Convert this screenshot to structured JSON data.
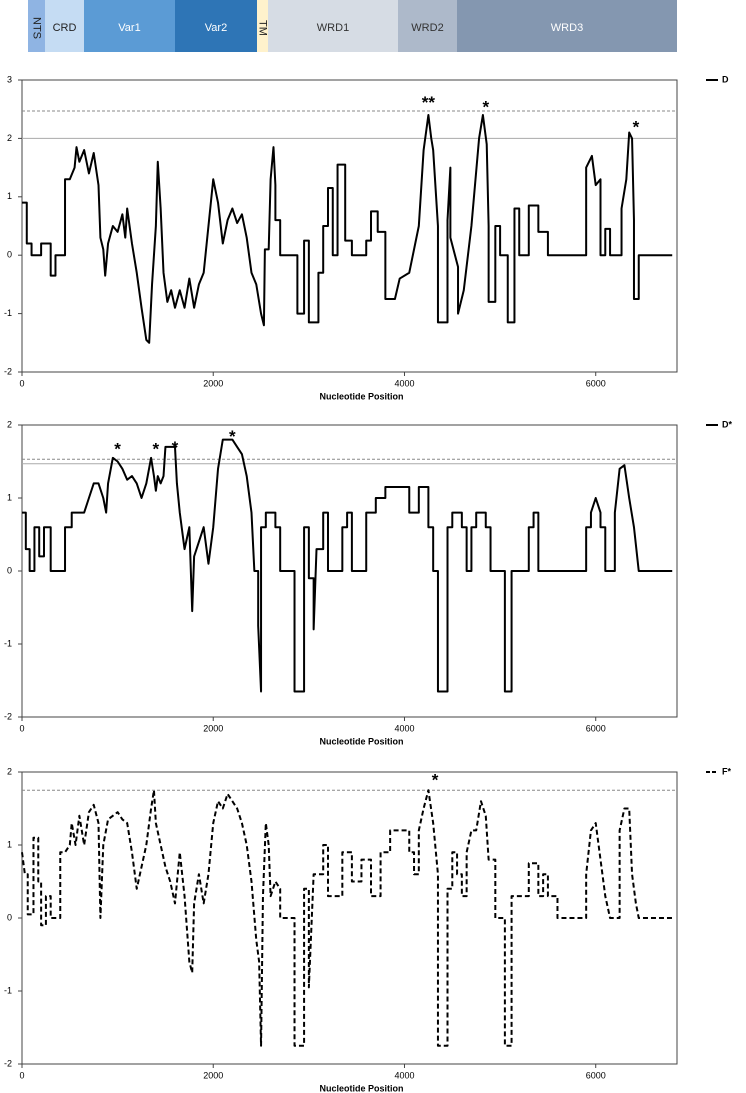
{
  "domain_map": {
    "domains": [
      "NTS",
      "CRD",
      "Var1",
      "Var2",
      "TM",
      "WRD1",
      "WRD2",
      "WRD3"
    ]
  },
  "chart_data": [
    {
      "type": "line",
      "x_label": "Nucleotide Position",
      "xlim": [
        0,
        6850
      ],
      "xticks": [
        0,
        2000,
        4000,
        6000
      ],
      "ylim": [
        -2,
        3
      ],
      "yticks": [
        -2,
        -1,
        0,
        1,
        2,
        3
      ],
      "reference_lines": [
        {
          "value": 2.47,
          "style": "dashed"
        },
        {
          "value": 2.0,
          "style": "solid"
        }
      ],
      "annotations": [
        "**",
        "*",
        "*"
      ],
      "x": [
        0,
        50,
        50,
        100,
        100,
        200,
        200,
        300,
        300,
        350,
        350,
        450,
        450,
        500,
        550,
        570,
        600,
        650,
        700,
        750,
        800,
        820,
        850,
        870,
        900,
        950,
        1000,
        1050,
        1080,
        1100,
        1150,
        1200,
        1250,
        1300,
        1330,
        1360,
        1400,
        1420,
        1450,
        1480,
        1520,
        1560,
        1600,
        1650,
        1700,
        1750,
        1800,
        1850,
        1900,
        1950,
        2000,
        2050,
        2100,
        2150,
        2200,
        2250,
        2300,
        2350,
        2400,
        2450,
        2500,
        2530,
        2540,
        2580,
        2600,
        2630,
        2650,
        2650,
        2700,
        2700,
        2880,
        2880,
        2950,
        2950,
        3000,
        3000,
        3100,
        3100,
        3150,
        3150,
        3200,
        3200,
        3250,
        3250,
        3300,
        3300,
        3380,
        3380,
        3450,
        3450,
        3600,
        3600,
        3650,
        3650,
        3720,
        3720,
        3800,
        3800,
        3900,
        3950,
        4050,
        4150,
        4200,
        4250,
        4280,
        4300,
        4350,
        4350,
        4450,
        4450,
        4480,
        4480,
        4560,
        4560,
        4620,
        4700,
        4780,
        4820,
        4860,
        4880,
        4880,
        4950,
        4950,
        5000,
        5000,
        5080,
        5080,
        5150,
        5150,
        5200,
        5200,
        5300,
        5300,
        5400,
        5400,
        5500,
        5500,
        5900,
        5900,
        5960,
        6000,
        6050,
        6050,
        6100,
        6100,
        6150,
        6150,
        6270,
        6270,
        6320,
        6350,
        6380,
        6400,
        6400,
        6450,
        6450,
        6800
      ],
      "series": [
        {
          "name": "D",
          "color": "#000000",
          "line_style": "solid",
          "values": [
            0.9,
            0.9,
            0.2,
            0.2,
            0,
            0,
            0.2,
            0.2,
            -0.35,
            -0.35,
            0,
            0,
            1.3,
            1.3,
            1.5,
            1.85,
            1.6,
            1.8,
            1.4,
            1.75,
            1.2,
            0.3,
            0.1,
            -0.35,
            0.2,
            0.5,
            0.4,
            0.7,
            0.3,
            0.8,
            0.2,
            -0.3,
            -0.9,
            -1.45,
            -1.5,
            -0.5,
            0.5,
            1.6,
            0.8,
            -0.3,
            -0.8,
            -0.6,
            -0.9,
            -0.6,
            -0.9,
            -0.4,
            -0.9,
            -0.5,
            -0.3,
            0.5,
            1.3,
            0.9,
            0.2,
            0.6,
            0.8,
            0.55,
            0.7,
            0.3,
            -0.3,
            -0.5,
            -1.0,
            -1.2,
            0.1,
            0.1,
            1.3,
            1.85,
            1.2,
            0.6,
            0.6,
            0,
            0,
            -1.0,
            -1.0,
            0.25,
            0.25,
            -1.15,
            -1.15,
            -0.3,
            -0.3,
            0.5,
            0.5,
            1.15,
            1.15,
            0,
            0,
            1.55,
            1.55,
            0.25,
            0.25,
            0,
            0,
            0.25,
            0.25,
            0.75,
            0.75,
            0.4,
            0.4,
            -0.75,
            -0.75,
            -0.4,
            -0.3,
            0.5,
            1.8,
            2.4,
            2.0,
            1.8,
            0.5,
            -1.15,
            -1.15,
            0.6,
            1.5,
            0.3,
            -0.2,
            -1.0,
            -0.6,
            0.5,
            2.0,
            2.4,
            1.9,
            0.5,
            -0.8,
            -0.8,
            0.5,
            0.5,
            0,
            0,
            -1.15,
            -1.15,
            0.8,
            0.8,
            0,
            0,
            0.85,
            0.85,
            0.4,
            0.4,
            0,
            0,
            1.5,
            1.7,
            1.2,
            1.3,
            0,
            0,
            0.45,
            0.45,
            0,
            0,
            0.8,
            1.3,
            2.1,
            2.0,
            0.6,
            -0.75,
            -0.75,
            0,
            0
          ]
        }
      ]
    },
    {
      "type": "line",
      "x_label": "Nucleotide Position",
      "xlim": [
        0,
        6850
      ],
      "xticks": [
        0,
        2000,
        4000,
        6000
      ],
      "ylim": [
        -2,
        2
      ],
      "yticks": [
        -2,
        -1,
        0,
        1,
        2
      ],
      "reference_lines": [
        {
          "value": 1.53,
          "style": "dashed"
        },
        {
          "value": 1.47,
          "style": "solid"
        }
      ],
      "annotations": [
        "*",
        "*",
        "*",
        "*"
      ],
      "x": [
        0,
        40,
        40,
        80,
        80,
        130,
        130,
        180,
        180,
        230,
        230,
        300,
        300,
        450,
        450,
        520,
        520,
        600,
        650,
        700,
        750,
        800,
        850,
        880,
        900,
        950,
        1000,
        1050,
        1100,
        1150,
        1200,
        1250,
        1300,
        1350,
        1380,
        1400,
        1420,
        1450,
        1480,
        1500,
        1600,
        1620,
        1650,
        1700,
        1750,
        1780,
        1800,
        1850,
        1900,
        1950,
        2000,
        2050,
        2100,
        2200,
        2250,
        2300,
        2350,
        2400,
        2430,
        2470,
        2470,
        2500,
        2500,
        2550,
        2550,
        2650,
        2650,
        2700,
        2700,
        2850,
        2850,
        2950,
        2950,
        3000,
        3000,
        3050,
        3050,
        3080,
        3150,
        3150,
        3200,
        3200,
        3350,
        3350,
        3400,
        3400,
        3450,
        3450,
        3600,
        3600,
        3700,
        3700,
        3800,
        3800,
        4050,
        4050,
        4150,
        4150,
        4250,
        4250,
        4300,
        4300,
        4350,
        4350,
        4450,
        4450,
        4500,
        4500,
        4600,
        4600,
        4650,
        4650,
        4700,
        4700,
        4750,
        4750,
        4850,
        4850,
        4900,
        4900,
        5050,
        5050,
        5120,
        5120,
        5300,
        5300,
        5350,
        5350,
        5400,
        5400,
        5900,
        5900,
        5950,
        5950,
        6000,
        6050,
        6050,
        6100,
        6100,
        6200,
        6200,
        6250,
        6300,
        6350,
        6400,
        6450,
        6800
      ],
      "series": [
        {
          "name": "D*",
          "color": "#000000",
          "line_style": "solid",
          "values": [
            0.8,
            0.8,
            0.3,
            0.3,
            0,
            0,
            0.6,
            0.6,
            0.2,
            0.2,
            0.6,
            0.6,
            0,
            0,
            0.6,
            0.6,
            0.8,
            0.8,
            0.8,
            1.0,
            1.2,
            1.2,
            1.0,
            0.8,
            1.2,
            1.55,
            1.5,
            1.4,
            1.25,
            1.3,
            1.2,
            1.0,
            1.2,
            1.55,
            1.3,
            1.1,
            1.3,
            1.2,
            1.3,
            1.7,
            1.7,
            1.2,
            0.8,
            0.3,
            0.6,
            -0.55,
            0.2,
            0.4,
            0.6,
            0.1,
            0.6,
            1.4,
            1.8,
            1.8,
            1.7,
            1.6,
            1.3,
            0.8,
            0,
            0,
            -0.75,
            -1.65,
            0.6,
            0.6,
            0.8,
            0.8,
            0.6,
            0.6,
            0,
            0,
            -1.65,
            -1.65,
            0.6,
            0.6,
            -0.1,
            -0.1,
            -0.8,
            0.3,
            0.3,
            0.8,
            0.8,
            0,
            0,
            0.6,
            0.6,
            0.8,
            0.8,
            0,
            0,
            0.8,
            0.8,
            1.0,
            1.0,
            1.15,
            1.15,
            0.8,
            0.8,
            1.15,
            1.15,
            0.6,
            0.6,
            0,
            0,
            -1.65,
            -1.65,
            0.6,
            0.6,
            0.8,
            0.8,
            0.6,
            0.6,
            0,
            0,
            0.6,
            0.6,
            0.8,
            0.8,
            0.6,
            0.6,
            0,
            0,
            -1.65,
            -1.65,
            0,
            0,
            0.6,
            0.6,
            0.8,
            0.8,
            0,
            0,
            0.6,
            0.6,
            0.8,
            1.0,
            0.8,
            0.6,
            0.6,
            0,
            0,
            0.8,
            1.4,
            1.45,
            1.0,
            0.6,
            0,
            0
          ]
        }
      ]
    },
    {
      "type": "line",
      "x_label": "Nucleotide Position",
      "xlim": [
        0,
        6850
      ],
      "xticks": [
        0,
        2000,
        4000,
        6000
      ],
      "ylim": [
        -2,
        2
      ],
      "yticks": [
        -2,
        -1,
        0,
        1,
        2
      ],
      "reference_lines": [
        {
          "value": 1.75,
          "style": "dashed"
        }
      ],
      "annotations": [
        "*"
      ],
      "x": [
        0,
        30,
        60,
        60,
        120,
        120,
        170,
        170,
        200,
        200,
        250,
        250,
        300,
        300,
        400,
        400,
        450,
        500,
        520,
        560,
        600,
        650,
        700,
        750,
        800,
        820,
        850,
        900,
        950,
        1000,
        1050,
        1100,
        1150,
        1200,
        1250,
        1300,
        1350,
        1380,
        1400,
        1450,
        1500,
        1550,
        1600,
        1650,
        1700,
        1750,
        1780,
        1800,
        1850,
        1900,
        1950,
        2000,
        2050,
        2100,
        2150,
        2200,
        2250,
        2300,
        2350,
        2400,
        2450,
        2480,
        2500,
        2520,
        2550,
        2580,
        2600,
        2650,
        2700,
        2700,
        2850,
        2850,
        2950,
        2950,
        3000,
        3000,
        3050,
        3150,
        3150,
        3200,
        3200,
        3350,
        3350,
        3450,
        3450,
        3550,
        3550,
        3650,
        3650,
        3750,
        3750,
        3850,
        3850,
        4050,
        4050,
        4100,
        4100,
        4150,
        4150,
        4200,
        4250,
        4300,
        4350,
        4350,
        4450,
        4450,
        4500,
        4500,
        4550,
        4550,
        4600,
        4600,
        4650,
        4650,
        4700,
        4750,
        4800,
        4850,
        4880,
        4950,
        4950,
        5050,
        5050,
        5120,
        5120,
        5300,
        5300,
        5400,
        5400,
        5450,
        5450,
        5500,
        5500,
        5600,
        5600,
        5900,
        5900,
        5950,
        6000,
        6050,
        6100,
        6150,
        6250,
        6250,
        6300,
        6350,
        6380,
        6420,
        6450,
        6800
      ],
      "series": [
        {
          "name": "F*",
          "color": "#000000",
          "line_style": "dashed",
          "values": [
            0.9,
            0.6,
            0.6,
            0.05,
            0.05,
            1.1,
            1.1,
            0.5,
            0.5,
            -0.1,
            -0.1,
            0.3,
            0.3,
            0,
            0,
            0.9,
            0.9,
            1.0,
            1.3,
            1.0,
            1.4,
            1.0,
            1.45,
            1.55,
            1.3,
            0,
            1.0,
            1.35,
            1.4,
            1.45,
            1.35,
            1.3,
            0.9,
            0.4,
            0.7,
            1.0,
            1.5,
            1.75,
            1.3,
            1.0,
            0.7,
            0.5,
            0.2,
            0.9,
            0.3,
            -0.6,
            -0.75,
            0.2,
            0.6,
            0.2,
            0.6,
            1.3,
            1.6,
            1.5,
            1.7,
            1.6,
            1.5,
            1.3,
            1.0,
            0.5,
            -0.3,
            -0.6,
            -1.75,
            0.3,
            1.3,
            1.0,
            0.3,
            0.5,
            0.4,
            0,
            0,
            -1.75,
            -1.75,
            0.4,
            0.4,
            -0.95,
            0.6,
            0.6,
            1.0,
            1.0,
            0.3,
            0.3,
            0.9,
            0.9,
            0.5,
            0.5,
            0.8,
            0.8,
            0.3,
            0.3,
            0.9,
            0.9,
            1.2,
            1.2,
            0.9,
            0.9,
            0.6,
            0.6,
            1.2,
            1.5,
            1.75,
            1.3,
            0.6,
            -1.75,
            -1.75,
            0.4,
            0.4,
            0.9,
            0.9,
            0.6,
            0.6,
            0.3,
            0.3,
            0.9,
            1.2,
            1.2,
            1.6,
            1.4,
            0.8,
            0.8,
            0,
            0,
            -1.75,
            -1.75,
            0.3,
            0.3,
            0.75,
            0.75,
            0.3,
            0.3,
            0.6,
            0.6,
            0.3,
            0.3,
            0,
            0,
            0.6,
            1.2,
            1.3,
            0.8,
            0.3,
            0,
            0,
            1.2,
            1.5,
            1.5,
            0.6,
            0.2,
            0,
            0
          ]
        }
      ]
    }
  ]
}
